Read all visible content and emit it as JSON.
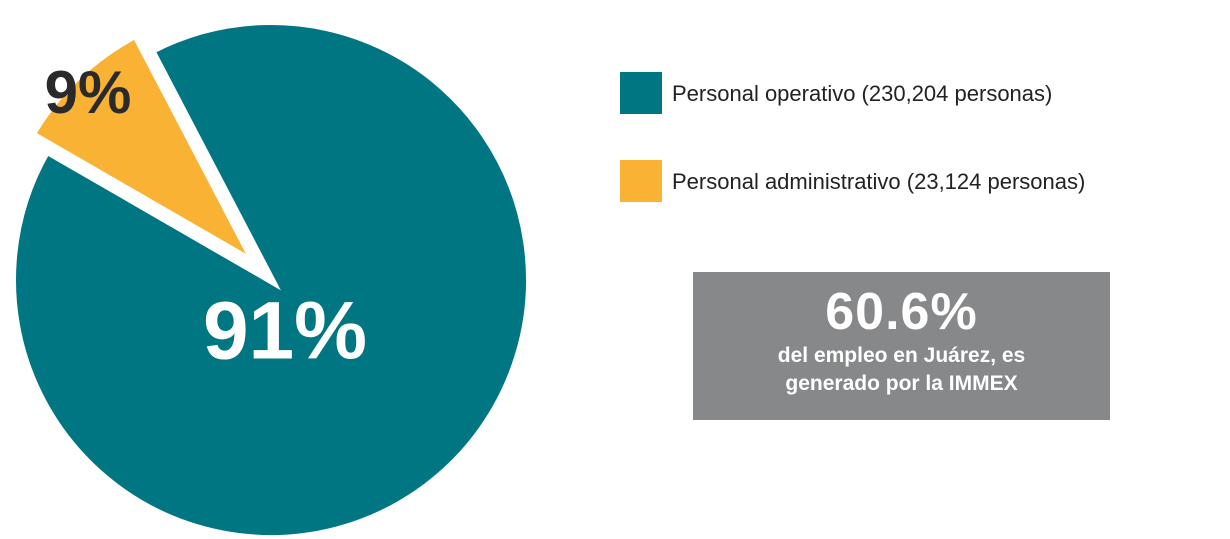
{
  "chart_data": {
    "type": "pie",
    "categories": [
      "Personal operativo (230,204 personas)",
      "Personal administrativo (23,124 personas)"
    ],
    "values": [
      91,
      9
    ],
    "value_labels": [
      "91%",
      "9%"
    ],
    "colors": [
      "#007682",
      "#f9b233"
    ],
    "annotation": {
      "headline": "60.6%",
      "text": "del empleo en Juárez, es generado por la IMMEX"
    }
  }
}
